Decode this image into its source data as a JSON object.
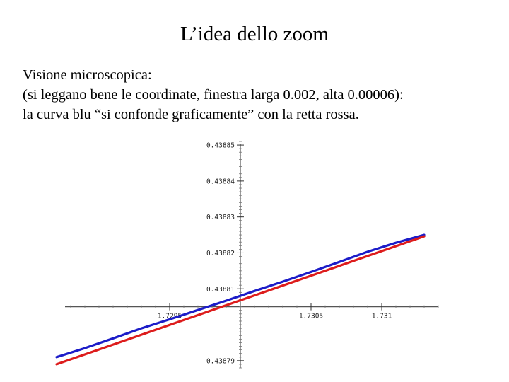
{
  "slide": {
    "title": "L’idea dello zoom",
    "lines": [
      "Visione microscopica:",
      "(si leggano bene le coordinate, finestra larga 0.002, alta 0.00006):",
      "la curva blu “si confonde graficamente” con la retta rossa."
    ]
  },
  "chart_data": {
    "type": "line",
    "title": "",
    "xlabel": "",
    "ylabel": "",
    "xlim": [
      1.7288,
      1.7314
    ],
    "ylim": [
      0.438788,
      0.438851
    ],
    "x_origin": 1.73,
    "y_origin": 0.438805,
    "x_ticks": [
      {
        "value": 1.7295,
        "label": "1.7295"
      },
      {
        "value": 1.7305,
        "label": "1.7305"
      },
      {
        "value": 1.731,
        "label": "1.731"
      }
    ],
    "y_ticks": [
      {
        "value": 0.43885,
        "label": "0.43885"
      },
      {
        "value": 0.43884,
        "label": "0.43884"
      },
      {
        "value": 0.43883,
        "label": "0.43883"
      },
      {
        "value": 0.43882,
        "label": "0.43882"
      },
      {
        "value": 0.43881,
        "label": "0.43881"
      },
      {
        "value": 0.43879,
        "label": "0.43879"
      }
    ],
    "grid": false,
    "series": [
      {
        "color": "#1c1cc8",
        "x": [
          1.7287,
          1.7289,
          1.7291,
          1.7293,
          1.7295,
          1.7297,
          1.7299,
          1.7301,
          1.7303,
          1.7305,
          1.7307,
          1.7309,
          1.7311,
          1.7313
        ],
        "y": [
          0.438791,
          0.4387935,
          0.4387962,
          0.438799,
          0.4388015,
          0.4388041,
          0.4388067,
          0.4388094,
          0.438812,
          0.4388147,
          0.4388175,
          0.4388203,
          0.4388228,
          0.438825
        ]
      },
      {
        "color": "#dd1c1c",
        "x": [
          1.7287,
          1.7313
        ],
        "y": [
          0.438789,
          0.4388246
        ]
      }
    ]
  }
}
